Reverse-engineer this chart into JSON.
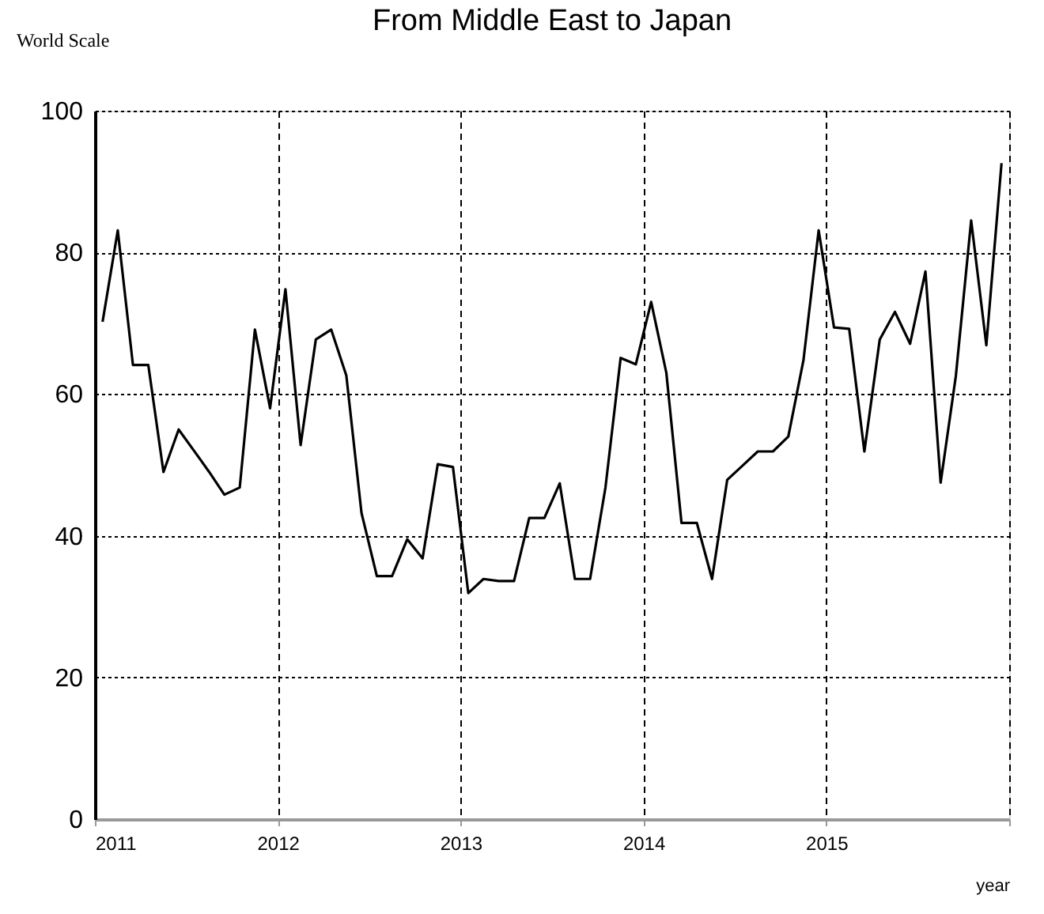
{
  "chart_data": {
    "type": "line",
    "title": "From Middle East to Japan",
    "ylabel": "World Scale",
    "xlabel": "year",
    "x": [
      2011.042,
      2011.125,
      2011.208,
      2011.292,
      2011.375,
      2011.458,
      2011.542,
      2011.625,
      2011.708,
      2011.792,
      2011.875,
      2011.958,
      2012.042,
      2012.125,
      2012.208,
      2012.292,
      2012.375,
      2012.458,
      2012.542,
      2012.625,
      2012.708,
      2012.792,
      2012.875,
      2012.958,
      2013.042,
      2013.125,
      2013.208,
      2013.292,
      2013.375,
      2013.458,
      2013.542,
      2013.625,
      2013.708,
      2013.792,
      2013.875,
      2013.958,
      2014.042,
      2014.125,
      2014.208,
      2014.292,
      2014.375,
      2014.458,
      2014.542,
      2014.625,
      2014.708,
      2014.792,
      2014.875,
      2014.958,
      2015.042,
      2015.125,
      2015.208,
      2015.292,
      2015.375,
      2015.458,
      2015.542,
      2015.625,
      2015.708,
      2015.792,
      2015.875,
      2015.958
    ],
    "series": [
      {
        "color": "#000000",
        "values": [
          70.2,
          83.1,
          64.1,
          64.1,
          49.0,
          55.0,
          52,
          49,
          45.8,
          46.8,
          69.1,
          58.0,
          74.8,
          52.8,
          67.7,
          69.1,
          62.6,
          43.2,
          34.3,
          34.3,
          39.5,
          36.8,
          50.1,
          49.7,
          31.9,
          33.9,
          33.6,
          33.6,
          42.5,
          42.5,
          47.4,
          33.9,
          33.9,
          46.8,
          65.1,
          64.2,
          73.0,
          63.0,
          41.8,
          41.8,
          33.9,
          47.9,
          49.9,
          51.9,
          51.9,
          54.0,
          64.8,
          83.1,
          69.4,
          69.2,
          51.9,
          67.7,
          71.6,
          67.1,
          77.3,
          47.5,
          62.5,
          84.5,
          66.9,
          92.6
        ]
      }
    ],
    "xlim": [
      2011,
      2016
    ],
    "xticks": [
      2011,
      2012,
      2013,
      2014,
      2015,
      {
        "value": 2016,
        "label": null
      }
    ],
    "ylim": [
      0,
      100
    ],
    "yticks": [
      0,
      20,
      40,
      60,
      80,
      100
    ],
    "grid": true,
    "legend": false,
    "marker": "none",
    "line_style": "solid"
  }
}
